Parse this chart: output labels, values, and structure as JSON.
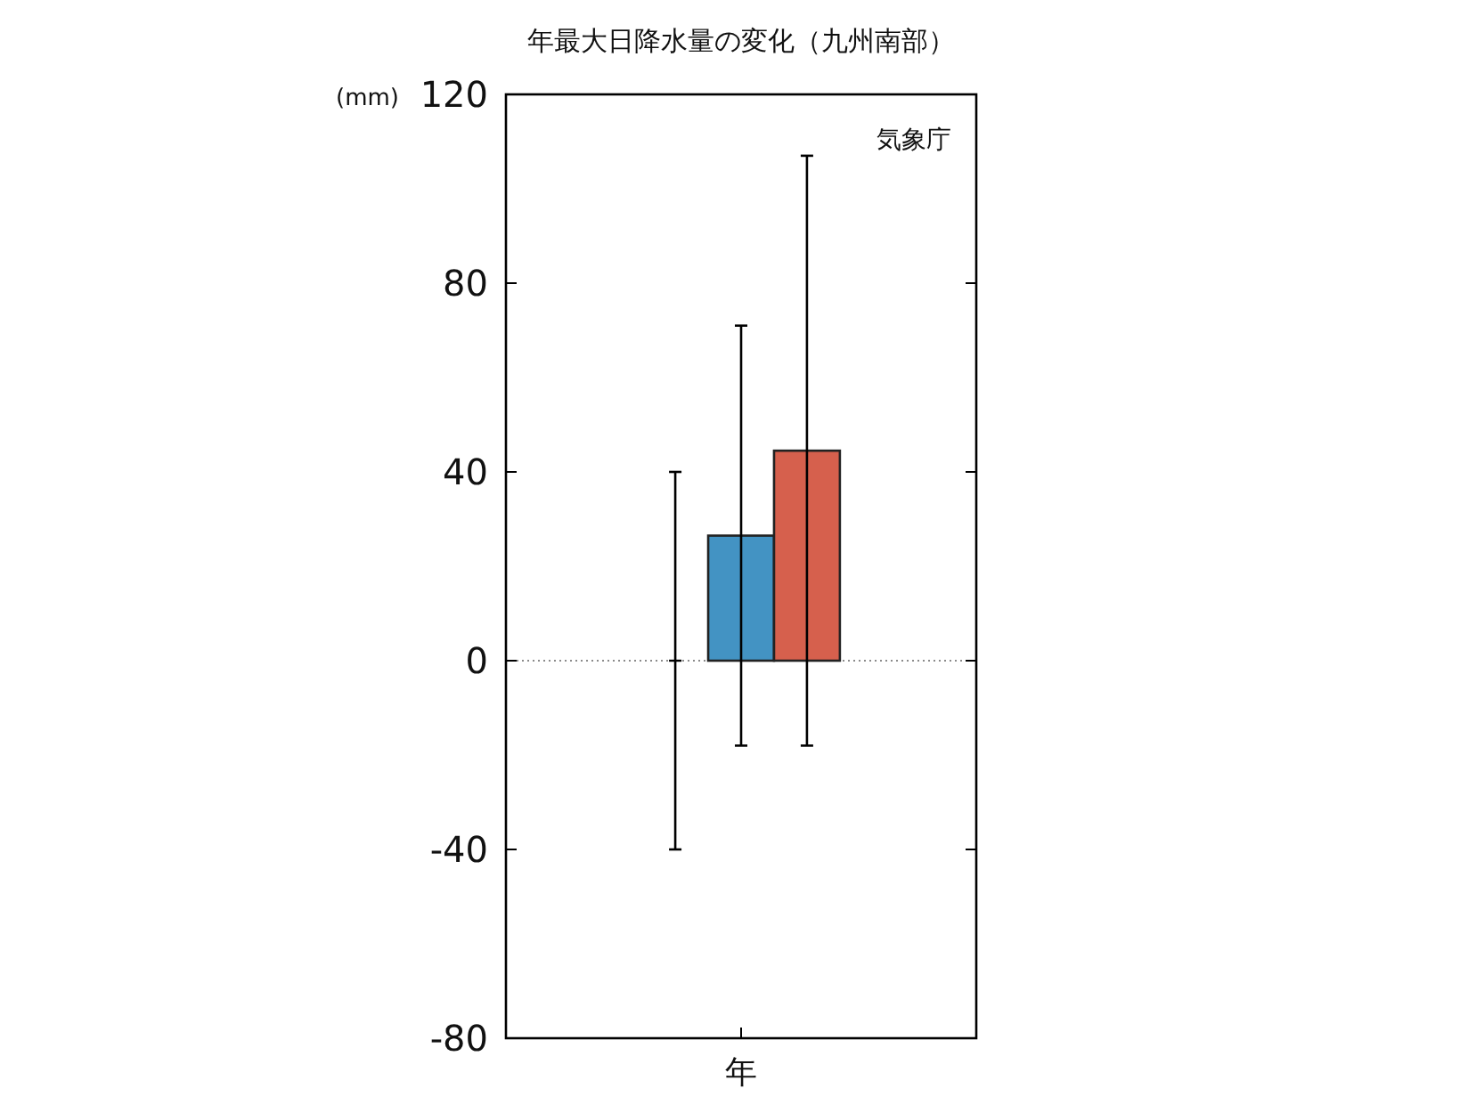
{
  "chart_data": {
    "type": "bar",
    "title": "年最大日降水量の変化（九州南部）",
    "ylabel": "(mm)",
    "annotations": [
      "気象庁"
    ],
    "categories": [
      "年"
    ],
    "series": [
      {
        "color": "#000000",
        "values": [
          0
        ],
        "errors": [
          [
            -40,
            40
          ]
        ]
      },
      {
        "color": "#4393c3",
        "values": [
          26.5
        ],
        "errors": [
          [
            -18,
            71
          ]
        ]
      },
      {
        "color": "#d6604d",
        "values": [
          44.5
        ],
        "errors": [
          [
            -18,
            107
          ]
        ]
      }
    ],
    "ylim": [
      -80,
      120
    ],
    "yticks": [
      -80,
      -40,
      0,
      40,
      80,
      120
    ],
    "ref_lines": [
      {
        "axis": "y",
        "value": 0,
        "color": "#666666",
        "line_style": "dotted"
      }
    ],
    "grid": false
  }
}
